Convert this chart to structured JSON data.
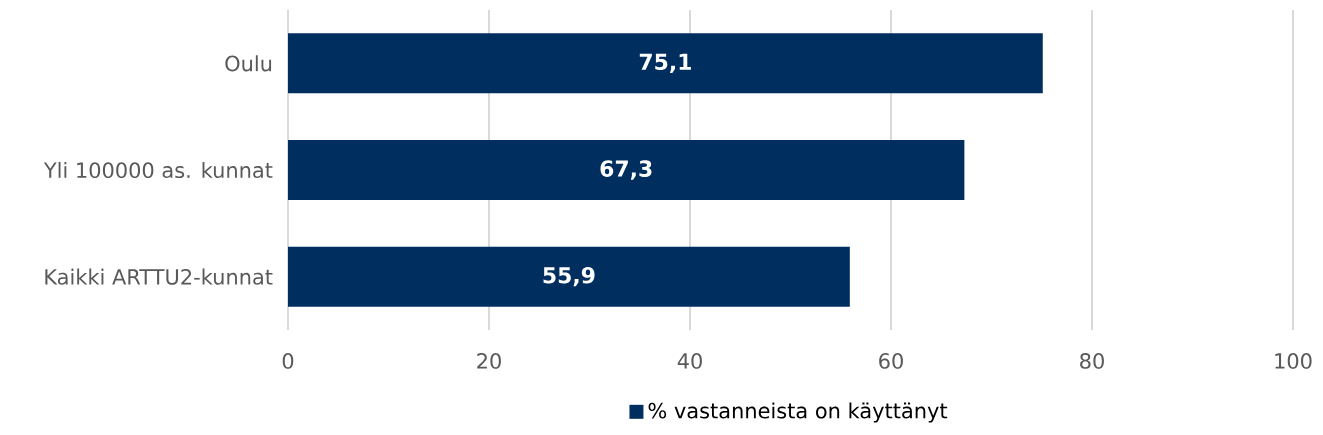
{
  "chart_data": {
    "type": "bar",
    "orientation": "horizontal",
    "categories": [
      "Oulu",
      "Yli 100000 as. kunnat",
      "Kaikki ARTTU2-kunnat"
    ],
    "series": [
      {
        "name": "% vastanneista on käyttänyt",
        "color": "#002f5f",
        "values": [
          75.1,
          67.3,
          55.9
        ],
        "value_labels": [
          "75,1",
          "67,3",
          "55,9"
        ]
      }
    ],
    "xlim": [
      0,
      100
    ],
    "xticks": [
      0,
      20,
      40,
      60,
      80,
      100
    ],
    "grid": "x",
    "legend": "bottom"
  }
}
